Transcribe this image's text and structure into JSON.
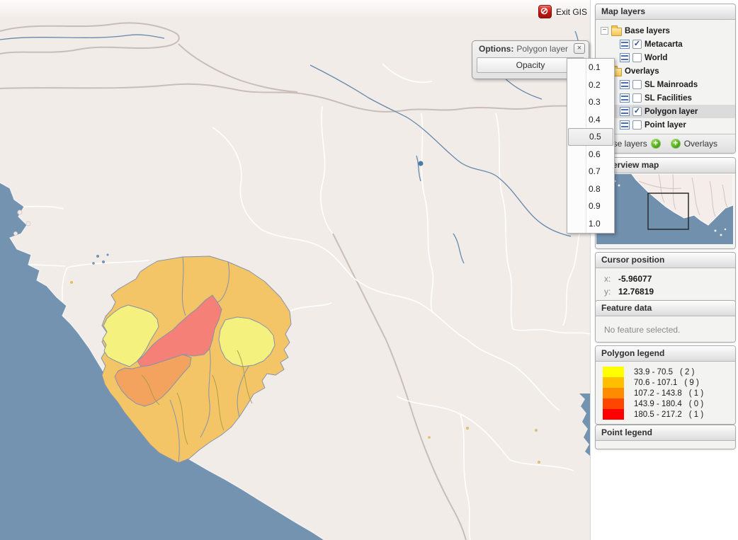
{
  "app": {
    "exit_button": "Exit GIS"
  },
  "icons": {
    "close": "×",
    "submenu_arrow": "▶",
    "plus": "+",
    "check": "✓",
    "collapse": "−"
  },
  "options_window": {
    "title_prefix": "Options:",
    "title_layer": "Polygon layer",
    "menu_item": "Opacity"
  },
  "opacity_menu": {
    "items": [
      "0.1",
      "0.2",
      "0.3",
      "0.4",
      "0.5",
      "0.6",
      "0.7",
      "0.8",
      "0.9",
      "1.0"
    ],
    "selected": "0.5"
  },
  "sidebar": {
    "map_layers": {
      "title": "Map layers",
      "tree": [
        {
          "label": "Base layers",
          "level": 0,
          "kind": "folder",
          "expander": true
        },
        {
          "label": "Metacarta",
          "level": 1,
          "kind": "layer",
          "checked": true
        },
        {
          "label": "World",
          "level": 1,
          "kind": "layer",
          "checked": false
        },
        {
          "label": "Overlays",
          "level": 0,
          "kind": "folder",
          "expander": false
        },
        {
          "label": "SL Mainroads",
          "level": 1,
          "kind": "layer",
          "checked": false
        },
        {
          "label": "SL Facilities",
          "level": 1,
          "kind": "layer",
          "checked": false
        },
        {
          "label": "Polygon layer",
          "level": 1,
          "kind": "layer",
          "checked": true,
          "selected": true
        },
        {
          "label": "Point layer",
          "level": 1,
          "kind": "layer",
          "checked": false
        }
      ],
      "toolbar": [
        {
          "label": "Base layers"
        },
        {
          "label": "Overlays"
        }
      ]
    },
    "overview": {
      "title": "Overview map"
    },
    "cursor": {
      "title": "Cursor position",
      "x_label": "x:",
      "x_value": "-5.96077",
      "y_label": "y:",
      "y_value": "12.76819"
    },
    "feature": {
      "title": "Feature data",
      "empty_text": "No feature selected."
    },
    "polygon_legend": {
      "title": "Polygon legend",
      "entries": [
        {
          "range": "33.9 - 70.5",
          "count": "( 2 )",
          "color": "#FFFF00"
        },
        {
          "range": "70.6 - 107.1",
          "count": "( 9 )",
          "color": "#FFBE00"
        },
        {
          "range": "107.2 - 143.8",
          "count": "( 1 )",
          "color": "#FF8C00"
        },
        {
          "range": "143.9 - 180.4",
          "count": "( 0 )",
          "color": "#FF4600"
        },
        {
          "range": "180.5 - 217.2",
          "count": "( 1 )",
          "color": "#FF0000"
        }
      ]
    },
    "point_legend": {
      "title": "Point legend"
    }
  }
}
